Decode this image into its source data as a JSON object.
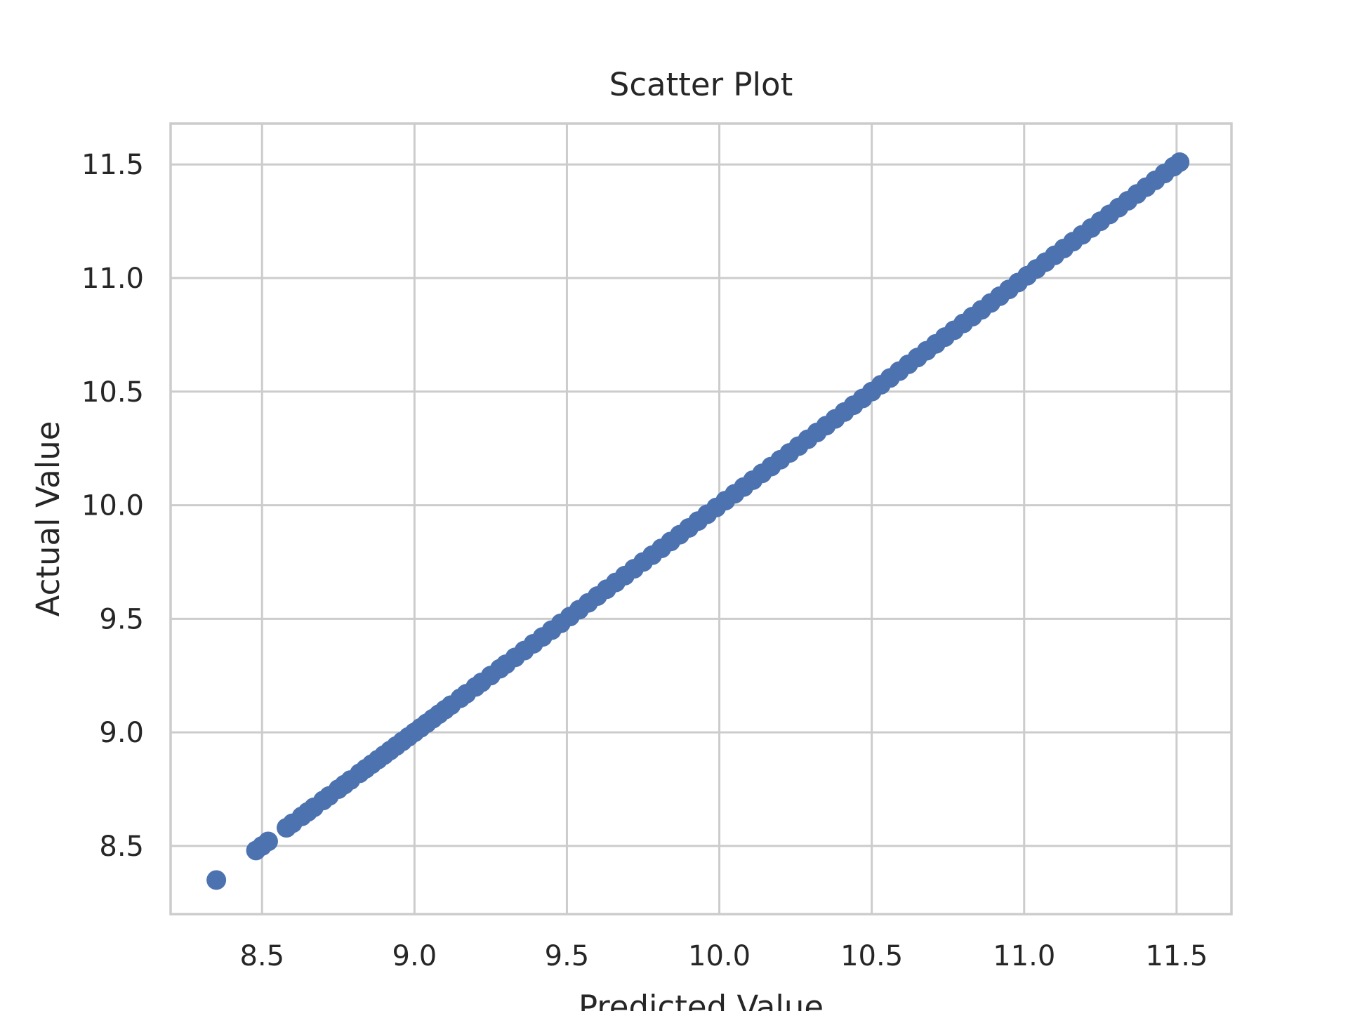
{
  "chart_data": {
    "type": "scatter",
    "title": "Scatter Plot",
    "xlabel": "Predicted Value",
    "ylabel": "Actual Value",
    "xlim": [
      8.2,
      11.68
    ],
    "ylim": [
      8.2,
      11.68
    ],
    "x_ticks": [
      8.5,
      9.0,
      9.5,
      10.0,
      10.5,
      11.0,
      11.5
    ],
    "y_ticks": [
      8.5,
      9.0,
      9.5,
      10.0,
      10.5,
      11.0,
      11.5
    ],
    "x_tick_labels": [
      "8.5",
      "9.0",
      "9.5",
      "10.0",
      "10.5",
      "11.0",
      "11.5"
    ],
    "y_tick_labels": [
      "8.5",
      "9.0",
      "9.5",
      "10.0",
      "10.5",
      "11.0",
      "11.5"
    ],
    "grid": true,
    "point_color": "#4c72b0",
    "series": [
      {
        "x": [
          8.35,
          8.48,
          8.5,
          8.52,
          8.58,
          8.6,
          8.63,
          8.65,
          8.67,
          8.7,
          8.72,
          8.75,
          8.77,
          8.79,
          8.82,
          8.84,
          8.86,
          8.88,
          8.9,
          8.92,
          8.94,
          8.96,
          8.98,
          9.0,
          9.02,
          9.04,
          9.06,
          9.08,
          9.1,
          9.12,
          9.15,
          9.17,
          9.2,
          9.22,
          9.25,
          9.28,
          9.3,
          9.33,
          9.36,
          9.39,
          9.42,
          9.45,
          9.48,
          9.51,
          9.54,
          9.57,
          9.6,
          9.63,
          9.66,
          9.69,
          9.72,
          9.75,
          9.78,
          9.81,
          9.84,
          9.87,
          9.9,
          9.93,
          9.96,
          9.99,
          10.02,
          10.05,
          10.08,
          10.11,
          10.14,
          10.17,
          10.2,
          10.23,
          10.26,
          10.29,
          10.32,
          10.35,
          10.38,
          10.41,
          10.44,
          10.47,
          10.5,
          10.53,
          10.56,
          10.59,
          10.62,
          10.65,
          10.68,
          10.71,
          10.74,
          10.77,
          10.8,
          10.83,
          10.86,
          10.89,
          10.92,
          10.95,
          10.98,
          11.01,
          11.04,
          11.07,
          11.1,
          11.13,
          11.16,
          11.19,
          11.22,
          11.25,
          11.28,
          11.31,
          11.34,
          11.37,
          11.4,
          11.43,
          11.46,
          11.49,
          11.51
        ],
        "y": [
          8.35,
          8.48,
          8.5,
          8.52,
          8.58,
          8.6,
          8.63,
          8.65,
          8.67,
          8.7,
          8.72,
          8.75,
          8.77,
          8.79,
          8.82,
          8.84,
          8.86,
          8.88,
          8.9,
          8.92,
          8.94,
          8.96,
          8.98,
          9.0,
          9.02,
          9.04,
          9.06,
          9.08,
          9.1,
          9.12,
          9.15,
          9.17,
          9.2,
          9.22,
          9.25,
          9.28,
          9.3,
          9.33,
          9.36,
          9.39,
          9.42,
          9.45,
          9.48,
          9.51,
          9.54,
          9.57,
          9.6,
          9.63,
          9.66,
          9.69,
          9.72,
          9.75,
          9.78,
          9.81,
          9.84,
          9.87,
          9.9,
          9.93,
          9.96,
          9.99,
          10.02,
          10.05,
          10.08,
          10.11,
          10.14,
          10.17,
          10.2,
          10.23,
          10.26,
          10.29,
          10.32,
          10.35,
          10.38,
          10.41,
          10.44,
          10.47,
          10.5,
          10.53,
          10.56,
          10.59,
          10.62,
          10.65,
          10.68,
          10.71,
          10.74,
          10.77,
          10.8,
          10.83,
          10.86,
          10.89,
          10.92,
          10.95,
          10.98,
          11.01,
          11.04,
          11.07,
          11.1,
          11.13,
          11.16,
          11.19,
          11.22,
          11.25,
          11.28,
          11.31,
          11.34,
          11.37,
          11.4,
          11.43,
          11.46,
          11.49,
          11.51
        ]
      }
    ]
  }
}
